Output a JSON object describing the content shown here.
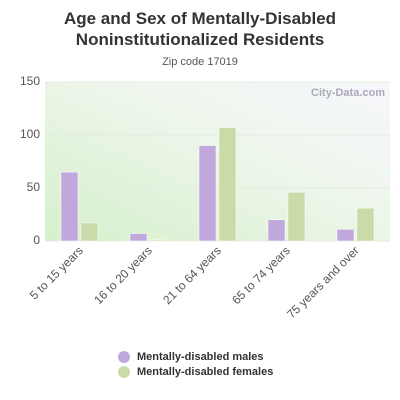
{
  "chart_data": {
    "type": "bar",
    "title": "Age and Sex of Mentally-Disabled Noninstitutionalized Residents",
    "subtitle": "Zip code 17019",
    "watermark": "City-Data.com",
    "categories": [
      "5 to 15 years",
      "16 to 20 years",
      "21 to 64 years",
      "65 to 74 years",
      "75 years and over"
    ],
    "series": [
      {
        "name": "Mentally-disabled males",
        "color": "#c0a8dc",
        "values": [
          65,
          7,
          90,
          20,
          11
        ]
      },
      {
        "name": "Mentally-disabled females",
        "color": "#c8dba8",
        "values": [
          17,
          1,
          107,
          46,
          31
        ]
      }
    ],
    "ylim": [
      0,
      150
    ],
    "yticks": [
      0,
      50,
      100,
      150
    ],
    "grid": true
  }
}
